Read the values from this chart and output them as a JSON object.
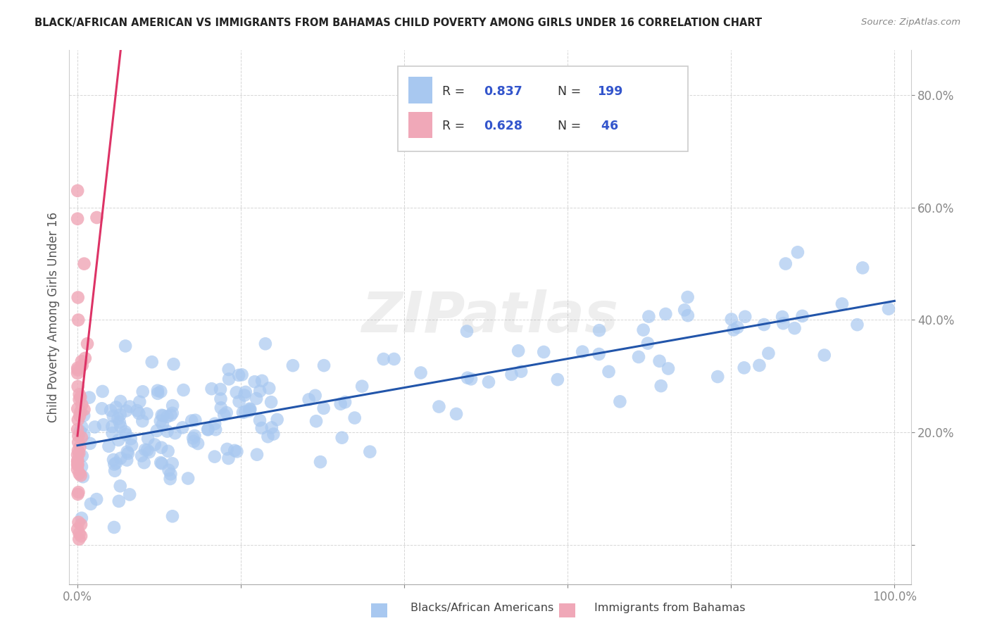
{
  "title": "BLACK/AFRICAN AMERICAN VS IMMIGRANTS FROM BAHAMAS CHILD POVERTY AMONG GIRLS UNDER 16 CORRELATION CHART",
  "source": "Source: ZipAtlas.com",
  "ylabel": "Child Poverty Among Girls Under 16",
  "blue_R": 0.837,
  "blue_N": 199,
  "pink_R": 0.628,
  "pink_N": 46,
  "blue_color": "#a8c8f0",
  "pink_color": "#f0a8b8",
  "blue_line_color": "#2255aa",
  "pink_line_color": "#dd3366",
  "watermark": "ZIPatlas",
  "legend_labels": [
    "Blacks/African Americans",
    "Immigrants from Bahamas"
  ],
  "xlim": [
    -0.01,
    1.02
  ],
  "ylim": [
    -0.07,
    0.88
  ],
  "background_color": "#ffffff",
  "grid_color": "#cccccc",
  "legend_text_color": "#3355cc",
  "tick_label_color": "#4488cc",
  "axis_label_color": "#555555"
}
